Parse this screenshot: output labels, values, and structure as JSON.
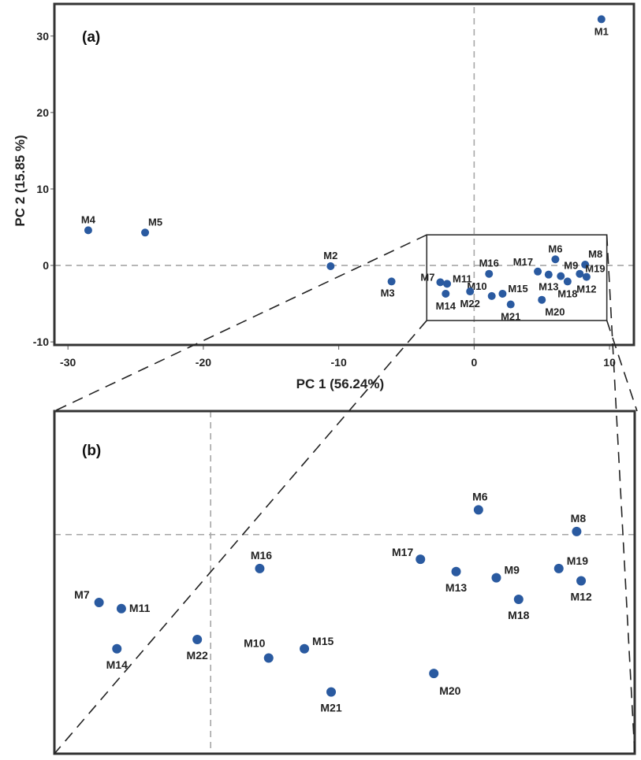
{
  "figure": {
    "panel_a_label": "(a)",
    "panel_b_label": "(b)",
    "point_color": "#2a5aa0",
    "frame_color": "#333333",
    "reference_line_color": "#a6a6a6"
  },
  "chart_data": [
    {
      "type": "scatter",
      "panel": "(a)",
      "title": "",
      "xlabel": "PC 1 (56.24%)",
      "ylabel": "PC 2 (15.85 %)",
      "xlim": [
        -31,
        11.8
      ],
      "ylim": [
        -10.4,
        34.2
      ],
      "xticks": [
        -30,
        -20,
        -10,
        0,
        10
      ],
      "yticks": [
        -10,
        0,
        10,
        20,
        30
      ],
      "xtick_labels": [
        "-30",
        "-20",
        "-10",
        "0",
        "10"
      ],
      "ytick_labels": [
        "-10",
        "0",
        "10",
        "20",
        "30"
      ],
      "reference_lines": {
        "x": 0,
        "y": 0,
        "style": "dashed"
      },
      "zoom_region": {
        "x": [
          -3.5,
          9.8
        ],
        "y": [
          -7.2,
          4.0
        ]
      },
      "grid": false,
      "legend": "none",
      "points": [
        {
          "label": "M1",
          "x": 9.4,
          "y": 32.2,
          "label_pos": "below"
        },
        {
          "label": "M2",
          "x": -10.6,
          "y": -0.1,
          "label_pos": "above"
        },
        {
          "label": "M3",
          "x": -6.1,
          "y": -2.1,
          "label_pos": "below-left"
        },
        {
          "label": "M4",
          "x": -28.5,
          "y": 4.6,
          "label_pos": "above"
        },
        {
          "label": "M5",
          "x": -24.3,
          "y": 4.3,
          "label_pos": "above-right"
        },
        {
          "label": "M6",
          "x": 6.0,
          "y": 0.8,
          "label_pos": "above"
        },
        {
          "label": "M7",
          "x": -2.5,
          "y": -2.2,
          "label_pos": "left"
        },
        {
          "label": "M8",
          "x": 8.2,
          "y": 0.1,
          "label_pos": "above-right"
        },
        {
          "label": "M9",
          "x": 6.4,
          "y": -1.4,
          "label_pos": "above-right"
        },
        {
          "label": "M10",
          "x": 1.3,
          "y": -4.0,
          "label_pos": "above-left"
        },
        {
          "label": "M11",
          "x": -2.0,
          "y": -2.4,
          "label_pos": "right"
        },
        {
          "label": "M12",
          "x": 8.3,
          "y": -1.5,
          "label_pos": "below"
        },
        {
          "label": "M13",
          "x": 5.5,
          "y": -1.2,
          "label_pos": "below"
        },
        {
          "label": "M14",
          "x": -2.1,
          "y": -3.7,
          "label_pos": "below"
        },
        {
          "label": "M15",
          "x": 2.1,
          "y": -3.7,
          "label_pos": "right"
        },
        {
          "label": "M16",
          "x": 1.1,
          "y": -1.1,
          "label_pos": "above"
        },
        {
          "label": "M17",
          "x": 4.7,
          "y": -0.8,
          "label_pos": "above-left"
        },
        {
          "label": "M18",
          "x": 6.9,
          "y": -2.1,
          "label_pos": "below"
        },
        {
          "label": "M19",
          "x": 7.8,
          "y": -1.1,
          "label_pos": "right"
        },
        {
          "label": "M20",
          "x": 5.0,
          "y": -4.5,
          "label_pos": "below-right"
        },
        {
          "label": "M21",
          "x": 2.7,
          "y": -5.1,
          "label_pos": "below"
        },
        {
          "label": "M22",
          "x": -0.3,
          "y": -3.4,
          "label_pos": "below"
        }
      ]
    },
    {
      "type": "scatter",
      "panel": "(b)",
      "title": "",
      "xlabel": "",
      "ylabel": "",
      "xlim": [
        -3.5,
        9.5
      ],
      "ylim": [
        -7.1,
        4.0
      ],
      "reference_lines": {
        "x": 0,
        "y": 0,
        "style": "dashed"
      },
      "grid": false,
      "legend": "none",
      "points": [
        {
          "label": "M6",
          "x": 6.0,
          "y": 0.8,
          "label_pos": "above"
        },
        {
          "label": "M7",
          "x": -2.5,
          "y": -2.2,
          "label_pos": "above-left"
        },
        {
          "label": "M8",
          "x": 8.2,
          "y": 0.1,
          "label_pos": "above"
        },
        {
          "label": "M9",
          "x": 6.4,
          "y": -1.4,
          "label_pos": "above-right"
        },
        {
          "label": "M10",
          "x": 1.3,
          "y": -4.0,
          "label_pos": "above-left"
        },
        {
          "label": "M11",
          "x": -2.0,
          "y": -2.4,
          "label_pos": "right"
        },
        {
          "label": "M12",
          "x": 8.3,
          "y": -1.5,
          "label_pos": "below"
        },
        {
          "label": "M13",
          "x": 5.5,
          "y": -1.2,
          "label_pos": "below"
        },
        {
          "label": "M14",
          "x": -2.1,
          "y": -3.7,
          "label_pos": "below"
        },
        {
          "label": "M15",
          "x": 2.1,
          "y": -3.7,
          "label_pos": "above-right"
        },
        {
          "label": "M16",
          "x": 1.1,
          "y": -1.1,
          "label_pos": "above"
        },
        {
          "label": "M17",
          "x": 4.7,
          "y": -0.8,
          "label_pos": "above-left"
        },
        {
          "label": "M18",
          "x": 6.9,
          "y": -2.1,
          "label_pos": "below"
        },
        {
          "label": "M19",
          "x": 7.8,
          "y": -1.1,
          "label_pos": "above-right"
        },
        {
          "label": "M20",
          "x": 5.0,
          "y": -4.5,
          "label_pos": "below-right"
        },
        {
          "label": "M21",
          "x": 2.7,
          "y": -5.1,
          "label_pos": "below"
        },
        {
          "label": "M22",
          "x": -0.3,
          "y": -3.4,
          "label_pos": "below"
        }
      ]
    }
  ]
}
